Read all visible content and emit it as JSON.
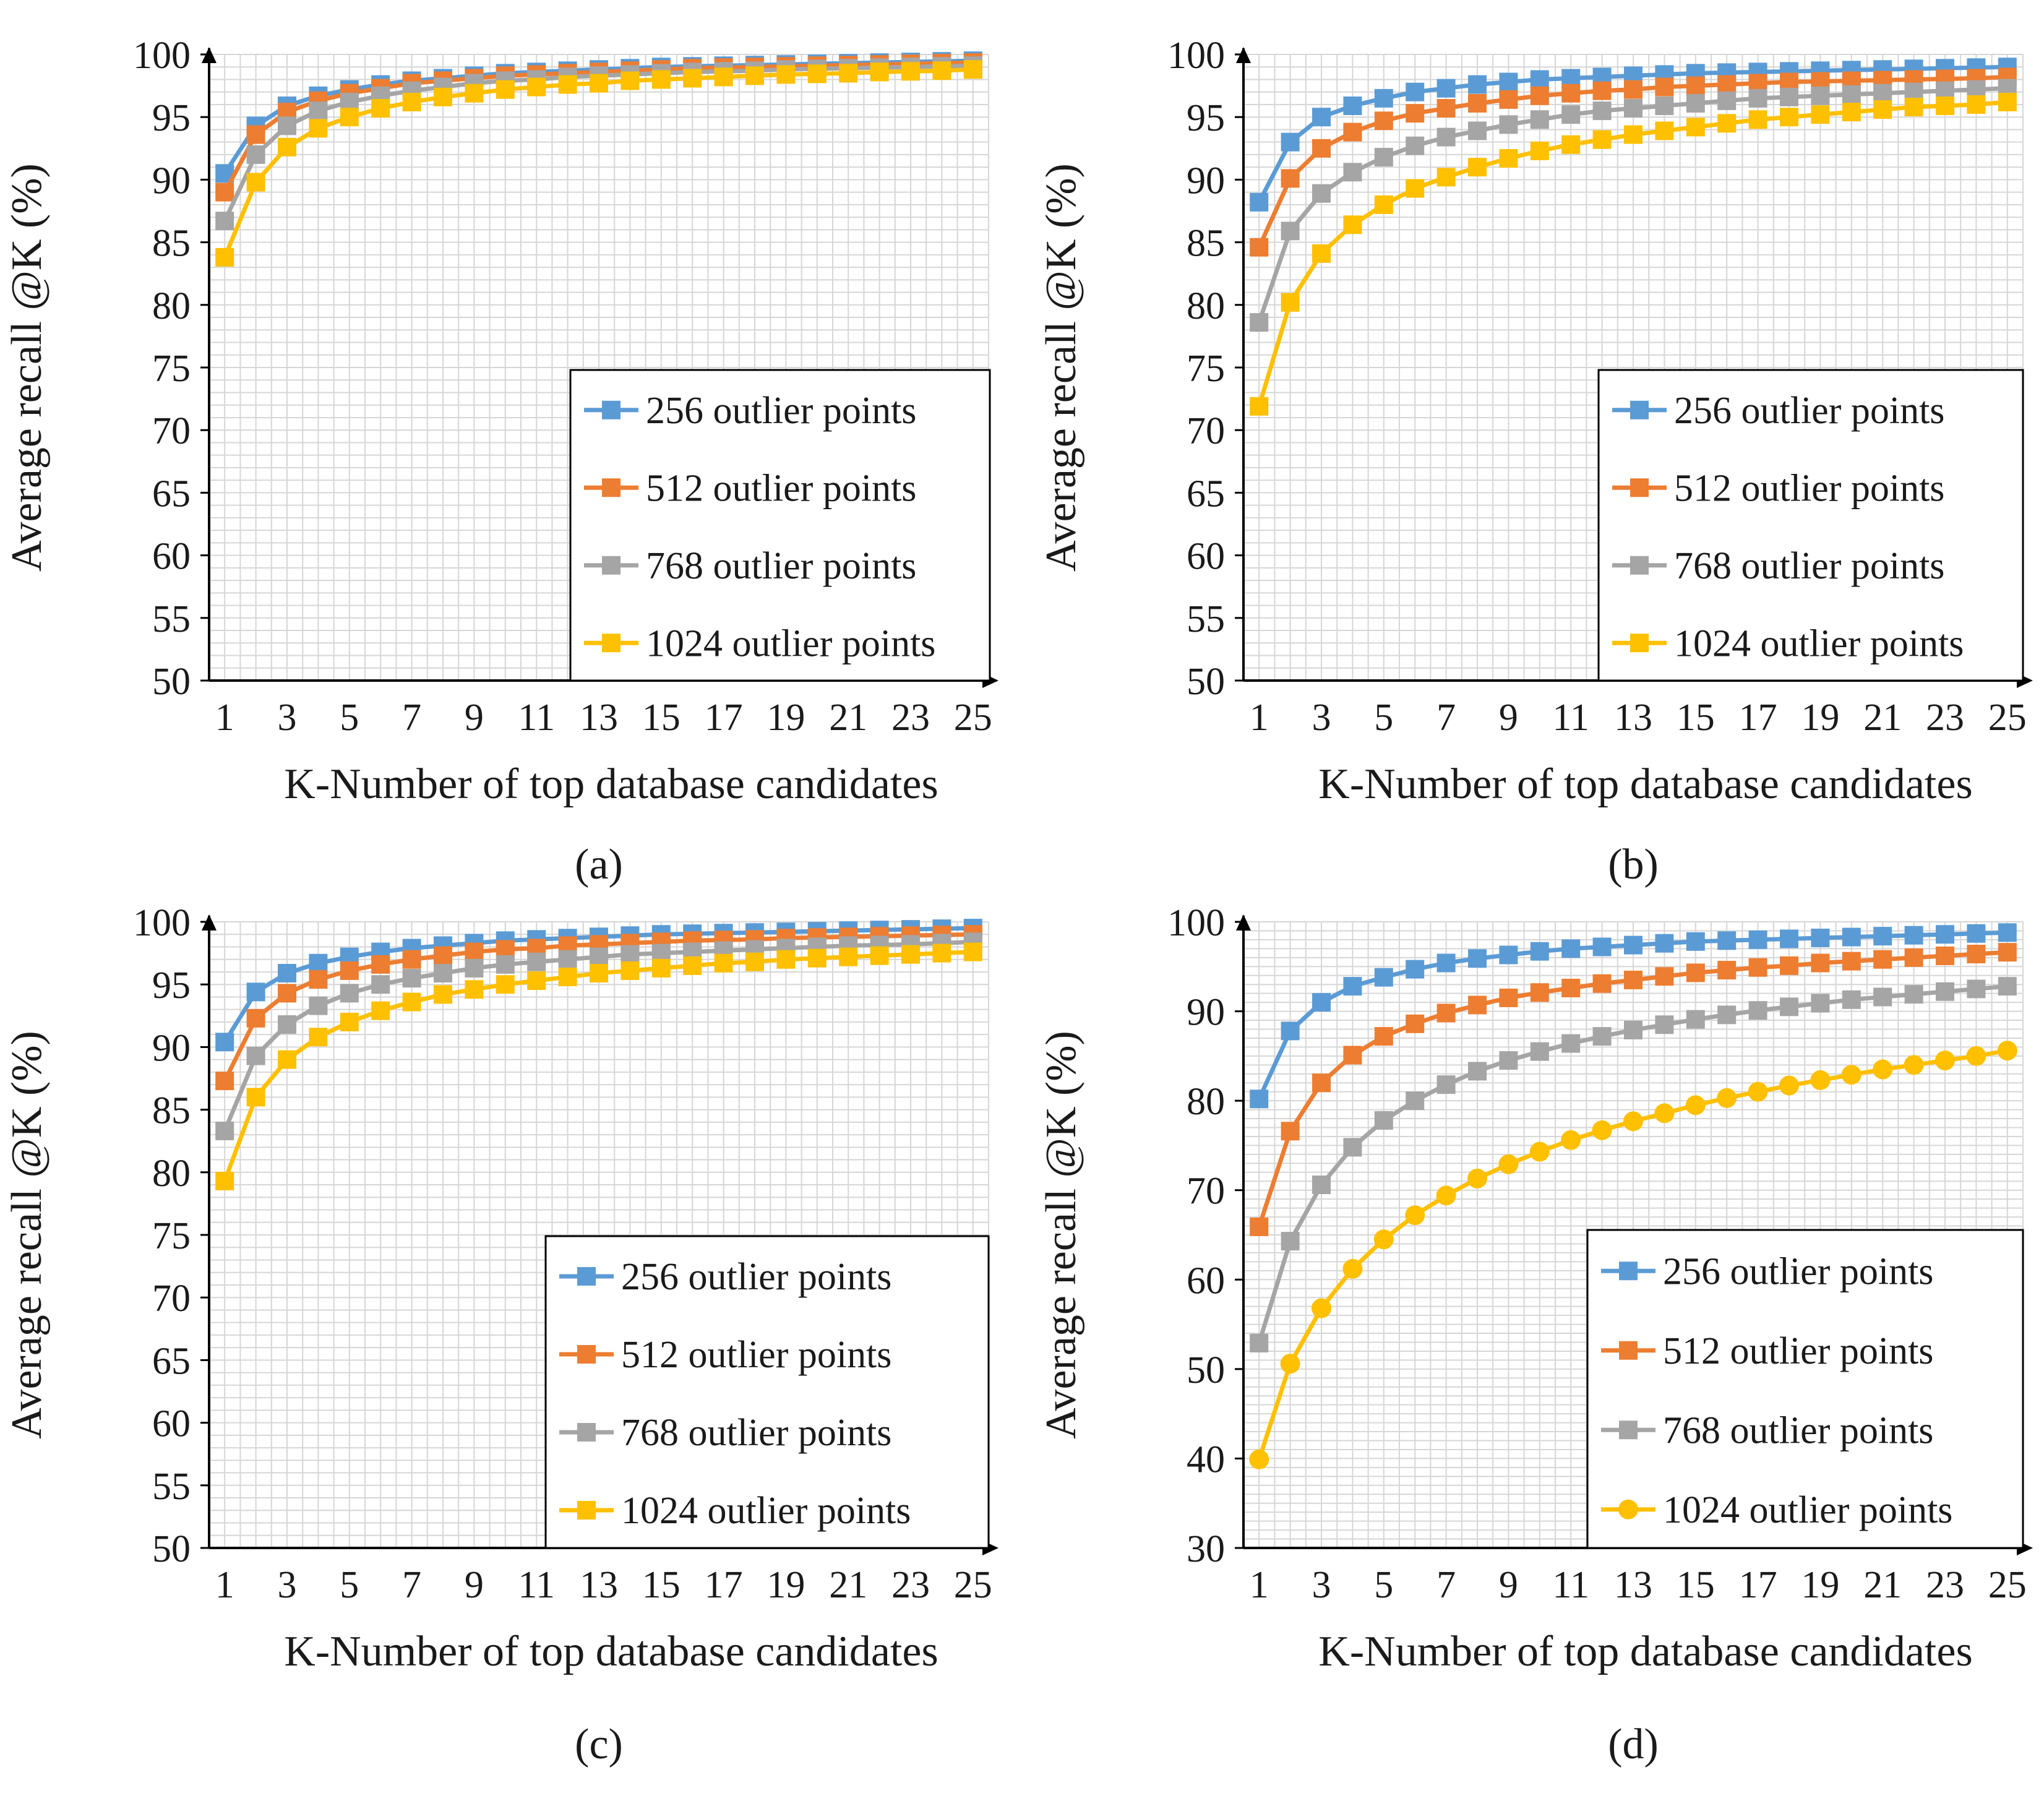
{
  "chart_data": [
    {
      "type": "line",
      "caption": "(a)",
      "xlabel": "K-Number  of top  database  candidates",
      "ylabel": "Average  recall  @K (%)",
      "x": [
        1,
        2,
        3,
        4,
        5,
        6,
        7,
        8,
        9,
        10,
        11,
        12,
        13,
        14,
        15,
        16,
        17,
        18,
        19,
        20,
        21,
        22,
        23,
        24,
        25
      ],
      "xticks": [
        "1",
        "3",
        "5",
        "7",
        "9",
        "11",
        "13",
        "15",
        "17",
        "19",
        "21",
        "23",
        "25"
      ],
      "ylim": [
        50,
        100
      ],
      "yticks": [
        "50",
        "55",
        "60",
        "65",
        "70",
        "75",
        "80",
        "85",
        "90",
        "95",
        "100"
      ],
      "marker": "square",
      "grid": true,
      "legend": "bottom-right",
      "series": [
        {
          "name": "256 outlier points",
          "color": "#5B9BD5",
          "values": [
            90.5,
            94.3,
            95.9,
            96.7,
            97.2,
            97.6,
            97.9,
            98.1,
            98.3,
            98.5,
            98.6,
            98.7,
            98.8,
            98.9,
            99.0,
            99.05,
            99.1,
            99.15,
            99.2,
            99.25,
            99.3,
            99.35,
            99.4,
            99.45,
            99.5
          ]
        },
        {
          "name": "512 outlier points",
          "color": "#ED7D31",
          "values": [
            89.0,
            93.6,
            95.4,
            96.3,
            96.9,
            97.3,
            97.7,
            97.9,
            98.1,
            98.3,
            98.4,
            98.5,
            98.6,
            98.7,
            98.8,
            98.9,
            98.95,
            99.0,
            99.05,
            99.1,
            99.15,
            99.2,
            99.25,
            99.3,
            99.35
          ]
        },
        {
          "name": "768 outlier points",
          "color": "#A5A5A5",
          "values": [
            86.7,
            92.0,
            94.3,
            95.5,
            96.2,
            96.7,
            97.1,
            97.4,
            97.7,
            97.9,
            98.0,
            98.2,
            98.3,
            98.4,
            98.5,
            98.6,
            98.65,
            98.7,
            98.8,
            98.85,
            98.9,
            98.95,
            99.0,
            99.05,
            99.1
          ]
        },
        {
          "name": "1024 outlier points",
          "color": "#FFC000",
          "values": [
            83.8,
            89.8,
            92.6,
            94.1,
            95.0,
            95.7,
            96.2,
            96.6,
            96.9,
            97.2,
            97.4,
            97.6,
            97.7,
            97.9,
            98.0,
            98.1,
            98.2,
            98.3,
            98.4,
            98.45,
            98.5,
            98.6,
            98.65,
            98.7,
            98.8
          ]
        }
      ]
    },
    {
      "type": "line",
      "caption": "(b)",
      "xlabel": "K-Number  of top  database  candidates",
      "ylabel": "Average  recall  @K (%)",
      "x": [
        1,
        2,
        3,
        4,
        5,
        6,
        7,
        8,
        9,
        10,
        11,
        12,
        13,
        14,
        15,
        16,
        17,
        18,
        19,
        20,
        21,
        22,
        23,
        24,
        25
      ],
      "xticks": [
        "1",
        "3",
        "5",
        "7",
        "9",
        "11",
        "13",
        "15",
        "17",
        "19",
        "21",
        "23",
        "25"
      ],
      "ylim": [
        50,
        100
      ],
      "yticks": [
        "50",
        "55",
        "60",
        "65",
        "70",
        "75",
        "80",
        "85",
        "90",
        "95",
        "100"
      ],
      "marker": "square",
      "grid": true,
      "legend": "bottom-right",
      "series": [
        {
          "name": "256 outlier points",
          "color": "#5B9BD5",
          "values": [
            88.2,
            93.0,
            95.0,
            95.9,
            96.5,
            97.0,
            97.3,
            97.6,
            97.8,
            98.0,
            98.1,
            98.2,
            98.3,
            98.4,
            98.5,
            98.55,
            98.6,
            98.65,
            98.7,
            98.75,
            98.8,
            98.85,
            98.9,
            98.95,
            99.0
          ]
        },
        {
          "name": "512 outlier points",
          "color": "#ED7D31",
          "values": [
            84.6,
            90.1,
            92.5,
            93.8,
            94.7,
            95.3,
            95.7,
            96.1,
            96.4,
            96.7,
            96.9,
            97.1,
            97.2,
            97.4,
            97.5,
            97.6,
            97.7,
            97.8,
            97.85,
            97.9,
            97.95,
            98.0,
            98.05,
            98.1,
            98.2
          ]
        },
        {
          "name": "768 outlier points",
          "color": "#A5A5A5",
          "values": [
            78.6,
            85.9,
            88.9,
            90.6,
            91.8,
            92.7,
            93.4,
            93.9,
            94.4,
            94.8,
            95.2,
            95.5,
            95.7,
            95.9,
            96.1,
            96.3,
            96.5,
            96.6,
            96.7,
            96.8,
            96.9,
            97.0,
            97.1,
            97.2,
            97.3
          ]
        },
        {
          "name": "1024 outlier points",
          "color": "#FFC000",
          "values": [
            71.9,
            80.2,
            84.1,
            86.4,
            88.0,
            89.3,
            90.2,
            91.0,
            91.7,
            92.3,
            92.8,
            93.2,
            93.6,
            93.9,
            94.2,
            94.5,
            94.8,
            95.0,
            95.2,
            95.4,
            95.6,
            95.8,
            95.9,
            96.0,
            96.2
          ]
        }
      ]
    },
    {
      "type": "line",
      "caption": "(c)",
      "xlabel": "K-Number  of top  database  candidates",
      "ylabel": "Average  recall  @K (%)",
      "x": [
        1,
        2,
        3,
        4,
        5,
        6,
        7,
        8,
        9,
        10,
        11,
        12,
        13,
        14,
        15,
        16,
        17,
        18,
        19,
        20,
        21,
        22,
        23,
        24,
        25
      ],
      "xticks": [
        "1",
        "3",
        "5",
        "7",
        "9",
        "11",
        "13",
        "15",
        "17",
        "19",
        "21",
        "23",
        "25"
      ],
      "ylim": [
        50,
        100
      ],
      "yticks": [
        "50",
        "55",
        "60",
        "65",
        "70",
        "75",
        "80",
        "85",
        "90",
        "95",
        "100"
      ],
      "marker": "square",
      "grid": true,
      "legend": "bottom-right",
      "series": [
        {
          "name": "256 outlier points",
          "color": "#5B9BD5",
          "values": [
            90.4,
            94.4,
            95.9,
            96.7,
            97.2,
            97.6,
            97.9,
            98.1,
            98.3,
            98.5,
            98.6,
            98.7,
            98.8,
            98.9,
            99.0,
            99.05,
            99.1,
            99.15,
            99.2,
            99.25,
            99.3,
            99.35,
            99.4,
            99.45,
            99.5
          ]
        },
        {
          "name": "512 outlier points",
          "color": "#ED7D31",
          "values": [
            87.3,
            92.3,
            94.3,
            95.4,
            96.1,
            96.6,
            97.0,
            97.3,
            97.6,
            97.8,
            97.9,
            98.1,
            98.2,
            98.3,
            98.4,
            98.5,
            98.55,
            98.6,
            98.7,
            98.75,
            98.8,
            98.85,
            98.9,
            98.95,
            99.0
          ]
        },
        {
          "name": "768 outlier points",
          "color": "#A5A5A5",
          "values": [
            83.3,
            89.3,
            91.8,
            93.3,
            94.3,
            95.0,
            95.5,
            95.9,
            96.3,
            96.6,
            96.8,
            97.0,
            97.2,
            97.4,
            97.5,
            97.6,
            97.7,
            97.8,
            97.9,
            98.0,
            98.1,
            98.15,
            98.2,
            98.3,
            98.4
          ]
        },
        {
          "name": "1024 outlier points",
          "color": "#FFC000",
          "values": [
            79.3,
            86.0,
            89.0,
            90.8,
            92.0,
            92.9,
            93.6,
            94.2,
            94.6,
            95.0,
            95.3,
            95.6,
            95.9,
            96.1,
            96.3,
            96.5,
            96.7,
            96.8,
            97.0,
            97.1,
            97.2,
            97.3,
            97.4,
            97.5,
            97.6
          ]
        }
      ]
    },
    {
      "type": "line",
      "caption": "(d)",
      "xlabel": "K-Number  of top  database  candidates",
      "ylabel": "Average  recall  @K (%)",
      "x": [
        1,
        2,
        3,
        4,
        5,
        6,
        7,
        8,
        9,
        10,
        11,
        12,
        13,
        14,
        15,
        16,
        17,
        18,
        19,
        20,
        21,
        22,
        23,
        24,
        25
      ],
      "xticks": [
        "1",
        "3",
        "5",
        "7",
        "9",
        "11",
        "13",
        "15",
        "17",
        "19",
        "21",
        "23",
        "25"
      ],
      "ylim": [
        30,
        100
      ],
      "yticks": [
        "30",
        "40",
        "50",
        "60",
        "70",
        "80",
        "90",
        "100"
      ],
      "marker": "mixed",
      "grid": true,
      "legend": "bottom-right",
      "series": [
        {
          "name": "256 outlier points",
          "color": "#5B9BD5",
          "marker": "square",
          "values": [
            80.2,
            87.8,
            91.0,
            92.8,
            93.8,
            94.7,
            95.4,
            95.9,
            96.3,
            96.7,
            97.0,
            97.2,
            97.4,
            97.6,
            97.8,
            97.9,
            98.0,
            98.1,
            98.2,
            98.3,
            98.4,
            98.5,
            98.6,
            98.7,
            98.8
          ]
        },
        {
          "name": "512 outlier points",
          "color": "#ED7D31",
          "marker": "square",
          "values": [
            65.9,
            76.6,
            82.0,
            85.1,
            87.2,
            88.6,
            89.8,
            90.7,
            91.5,
            92.1,
            92.6,
            93.1,
            93.5,
            93.9,
            94.3,
            94.6,
            94.9,
            95.1,
            95.4,
            95.6,
            95.8,
            96.0,
            96.2,
            96.4,
            96.6
          ]
        },
        {
          "name": "768 outlier points",
          "color": "#A5A5A5",
          "marker": "square",
          "values": [
            52.9,
            64.3,
            70.6,
            74.8,
            77.8,
            80.0,
            81.8,
            83.3,
            84.5,
            85.5,
            86.4,
            87.2,
            87.9,
            88.5,
            89.1,
            89.6,
            90.1,
            90.5,
            90.9,
            91.3,
            91.6,
            91.9,
            92.2,
            92.5,
            92.8
          ]
        },
        {
          "name": "1024 outlier points",
          "color": "#FFC000",
          "marker": "circle",
          "values": [
            39.9,
            50.6,
            56.8,
            61.2,
            64.5,
            67.2,
            69.4,
            71.3,
            72.9,
            74.3,
            75.6,
            76.7,
            77.7,
            78.6,
            79.5,
            80.3,
            81.0,
            81.7,
            82.3,
            82.9,
            83.5,
            84.0,
            84.5,
            85.0,
            85.6
          ]
        }
      ]
    }
  ]
}
